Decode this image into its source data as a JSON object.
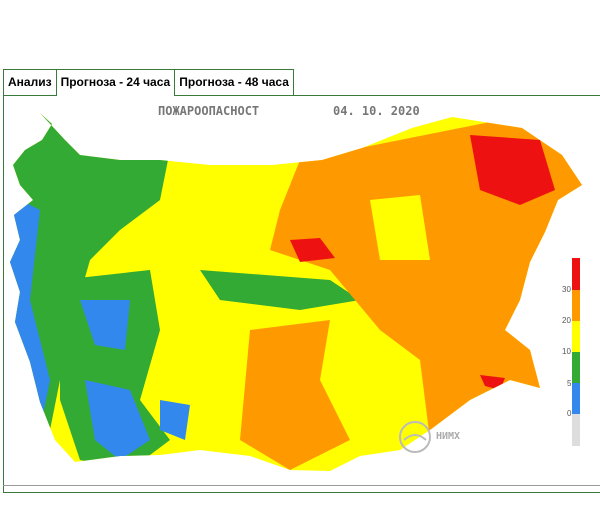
{
  "tabs": [
    {
      "label": "Анализ",
      "active": false
    },
    {
      "label": "Прогноза - 24 часа",
      "active": true
    },
    {
      "label": "Прогноза - 48 часа",
      "active": false
    }
  ],
  "map": {
    "title": "ПОЖАРООПАСНОСТ",
    "date": "04. 10. 2020",
    "logo_text": "НИМХ"
  },
  "legend": {
    "ticks": [
      "30",
      "20",
      "10",
      "5",
      "0"
    ],
    "colors": [
      "#ee1111",
      "#ff9900",
      "#ffff00",
      "#33aa33",
      "#3388ee",
      "#dddddd"
    ]
  }
}
